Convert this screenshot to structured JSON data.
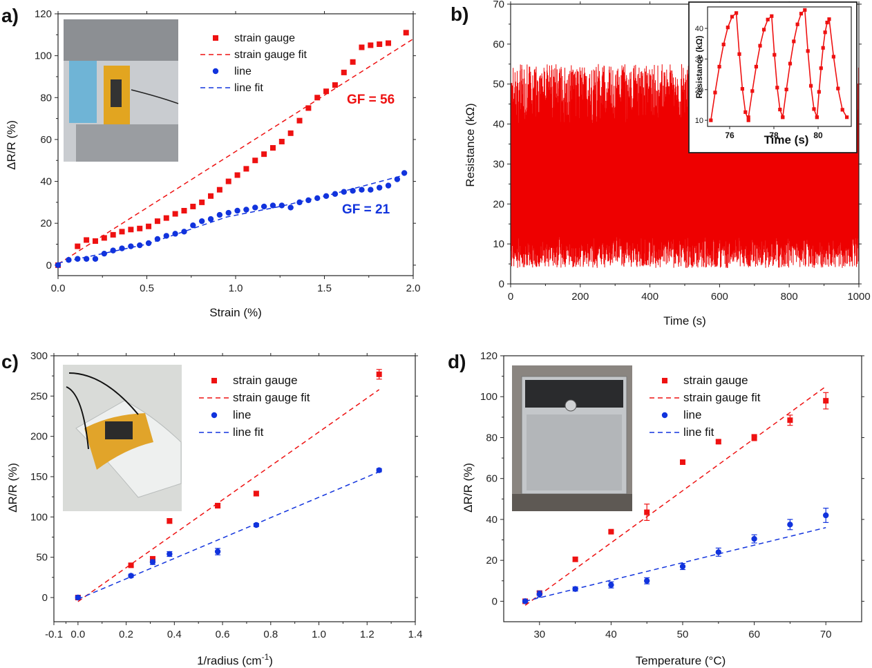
{
  "chart_data": [
    {
      "panel": "a)",
      "type": "scatter",
      "xlabel": "Strain (%)",
      "ylabel": "ΔR/R (%)",
      "xlim": [
        0,
        2.0
      ],
      "ylim": [
        -5,
        120
      ],
      "xticks": [
        "0.0",
        "0.5",
        "1.0",
        "1.5",
        "2.0"
      ],
      "yticks": [
        "0",
        "20",
        "40",
        "60",
        "80",
        "100",
        "120"
      ],
      "legend_position": "top-right",
      "annotations": [
        "GF = 56",
        "GF = 21"
      ],
      "inset_photo": "strain-test-rig-photo",
      "series": [
        {
          "name": "strain gauge",
          "color": "#ee1111",
          "marker": "square",
          "x": [
            0.0,
            0.11,
            0.16,
            0.21,
            0.26,
            0.31,
            0.36,
            0.41,
            0.46,
            0.51,
            0.56,
            0.61,
            0.66,
            0.71,
            0.76,
            0.81,
            0.86,
            0.91,
            0.96,
            1.01,
            1.06,
            1.11,
            1.16,
            1.21,
            1.26,
            1.31,
            1.36,
            1.41,
            1.46,
            1.51,
            1.56,
            1.61,
            1.66,
            1.71,
            1.76,
            1.81,
            1.86,
            1.96
          ],
          "y": [
            0,
            9,
            12,
            11.5,
            13,
            14.5,
            16,
            17,
            17.5,
            18.5,
            21,
            22.5,
            24.5,
            26,
            28,
            30,
            33,
            36,
            40,
            43,
            46,
            50,
            53,
            56,
            59,
            63,
            69,
            75,
            80,
            83,
            86,
            92,
            97,
            104,
            105,
            105.5,
            106,
            111
          ]
        },
        {
          "name": "strain gauge fit",
          "color": "#ee1111",
          "line": "dashed",
          "x": [
            0.0,
            2.0
          ],
          "y": [
            0.5,
            108
          ]
        },
        {
          "name": "line",
          "color": "#1133dd",
          "marker": "circle",
          "x": [
            0.0,
            0.06,
            0.11,
            0.16,
            0.21,
            0.26,
            0.31,
            0.36,
            0.41,
            0.46,
            0.51,
            0.56,
            0.61,
            0.66,
            0.71,
            0.76,
            0.81,
            0.86,
            0.91,
            0.96,
            1.01,
            1.06,
            1.11,
            1.16,
            1.21,
            1.26,
            1.31,
            1.36,
            1.41,
            1.46,
            1.51,
            1.56,
            1.61,
            1.66,
            1.71,
            1.76,
            1.81,
            1.86,
            1.91,
            1.95
          ],
          "y": [
            0,
            2.5,
            3,
            3,
            3,
            5.5,
            7,
            8,
            9,
            9.5,
            10.5,
            12.5,
            14,
            15,
            16,
            19,
            21,
            22,
            24,
            25,
            26,
            26.5,
            27.5,
            28,
            28.5,
            28.5,
            27.5,
            30,
            31,
            32,
            33,
            34,
            35,
            35.5,
            36,
            36,
            37,
            38,
            41,
            44
          ]
        },
        {
          "name": "line fit",
          "color": "#1133dd",
          "line": "dashed",
          "x": [
            0.0,
            0.5,
            0.95,
            1.25,
            1.55,
            1.95
          ],
          "y": [
            1,
            10,
            23,
            28,
            34,
            43
          ]
        }
      ]
    },
    {
      "panel": "b)",
      "type": "line",
      "xlabel": "Time (s)",
      "ylabel": "Resistance (kΩ)",
      "xlim": [
        0,
        1000
      ],
      "ylim": [
        0,
        70
      ],
      "xticks": [
        "0",
        "200",
        "400",
        "600",
        "800",
        "1000"
      ],
      "yticks": [
        "0",
        "10",
        "20",
        "30",
        "40",
        "50",
        "60",
        "70"
      ],
      "series": [
        {
          "name": "",
          "color": "#ee0000",
          "min_band_kohm": [
            4,
            12
          ],
          "max_band_kohm": [
            40,
            55
          ],
          "cycles_per_second": 0.4
        }
      ],
      "inset": {
        "xlabel": "Time (s)",
        "ylabel": "Resistance (kΩ)",
        "xlim": [
          75,
          81.5
        ],
        "ylim": [
          8,
          47
        ],
        "xticks": [
          "76",
          "78",
          "80"
        ],
        "yticks": [
          "10",
          "20",
          "30",
          "40"
        ],
        "peaks": [
          {
            "t_min": 75.15,
            "t_peak": 76.3,
            "t_end": 76.85,
            "min": 10,
            "max": 45
          },
          {
            "t_min": 76.85,
            "t_peak": 77.9,
            "t_end": 78.4,
            "min": 11,
            "max": 44
          },
          {
            "t_min": 78.4,
            "t_peak": 79.4,
            "t_end": 79.95,
            "min": 11,
            "max": 46
          },
          {
            "t_min": 79.95,
            "t_peak": 80.5,
            "t_end": 81.3,
            "min": 11,
            "max": 43
          }
        ]
      }
    },
    {
      "panel": "c)",
      "type": "scatter",
      "xlabel": "1/radius (cm-1)",
      "xlabel_main": "1/radius (cm",
      "xlabel_sup": "-1",
      "xlabel_close": ")",
      "ylabel": "ΔR/R (%)",
      "xlim": [
        -0.1,
        1.4
      ],
      "ylim": [
        -30,
        300
      ],
      "xticks": [
        "-0.1",
        "0.0",
        "0.2",
        "0.4",
        "0.6",
        "0.8",
        "1.0",
        "1.2",
        "1.4"
      ],
      "yticks": [
        "0",
        "50",
        "100",
        "150",
        "200",
        "250",
        "300"
      ],
      "legend_position": "top-right",
      "inset_photo": "bent-sensor-photo",
      "series": [
        {
          "name": "strain gauge",
          "color": "#ee1111",
          "marker": "square",
          "x": [
            0.0,
            0.22,
            0.31,
            0.38,
            0.58,
            0.74,
            1.25
          ],
          "y": [
            0,
            40,
            48,
            95,
            114,
            129,
            277
          ],
          "err": [
            2,
            2,
            3,
            3,
            3,
            3,
            6
          ]
        },
        {
          "name": "strain gauge fit",
          "color": "#ee1111",
          "line": "dashed",
          "x": [
            0.0,
            1.25
          ],
          "y": [
            -5,
            258
          ]
        },
        {
          "name": "line",
          "color": "#1133dd",
          "marker": "circle",
          "x": [
            0.0,
            0.22,
            0.31,
            0.38,
            0.58,
            0.74,
            1.25
          ],
          "y": [
            0,
            27,
            44,
            54,
            57,
            90,
            158
          ],
          "err": [
            2,
            2,
            3,
            3,
            4,
            2,
            2
          ]
        },
        {
          "name": "line fit",
          "color": "#1133dd",
          "line": "dashed",
          "x": [
            0.0,
            1.25
          ],
          "y": [
            -2,
            156
          ]
        }
      ]
    },
    {
      "panel": "d)",
      "type": "scatter",
      "xlabel": "Temperature (°C)",
      "ylabel": "ΔR/R (%)",
      "xlim": [
        25,
        75
      ],
      "ylim": [
        -10,
        120
      ],
      "xticks": [
        "30",
        "40",
        "50",
        "60",
        "70"
      ],
      "yticks": [
        "0",
        "20",
        "40",
        "60",
        "80",
        "100",
        "120"
      ],
      "legend_position": "top-right",
      "inset_photo": "oven-photo",
      "series": [
        {
          "name": "strain gauge",
          "color": "#ee1111",
          "marker": "square",
          "x": [
            28,
            30,
            35,
            40,
            45,
            50,
            55,
            60,
            65,
            70
          ],
          "y": [
            0,
            4,
            20.5,
            34,
            43.5,
            68,
            78,
            80,
            88.5,
            98
          ],
          "err": [
            0.5,
            0.8,
            1,
            0.5,
            4,
            1,
            0.8,
            1.5,
            2.5,
            4
          ]
        },
        {
          "name": "strain gauge fit",
          "color": "#ee1111",
          "line": "dashed",
          "x": [
            28,
            70
          ],
          "y": [
            -2,
            105
          ]
        },
        {
          "name": "line",
          "color": "#1133dd",
          "marker": "circle",
          "x": [
            28,
            30,
            35,
            40,
            45,
            50,
            55,
            60,
            65,
            70
          ],
          "y": [
            0,
            3.5,
            6,
            8,
            10,
            17,
            24,
            30.5,
            37.5,
            42
          ],
          "err": [
            0.5,
            1.5,
            1,
            1.5,
            1.5,
            1.5,
            2,
            2,
            2.5,
            3.5
          ]
        },
        {
          "name": "line fit",
          "color": "#1133dd",
          "line": "dashed",
          "x": [
            28,
            70
          ],
          "y": [
            0,
            36
          ]
        }
      ]
    }
  ]
}
